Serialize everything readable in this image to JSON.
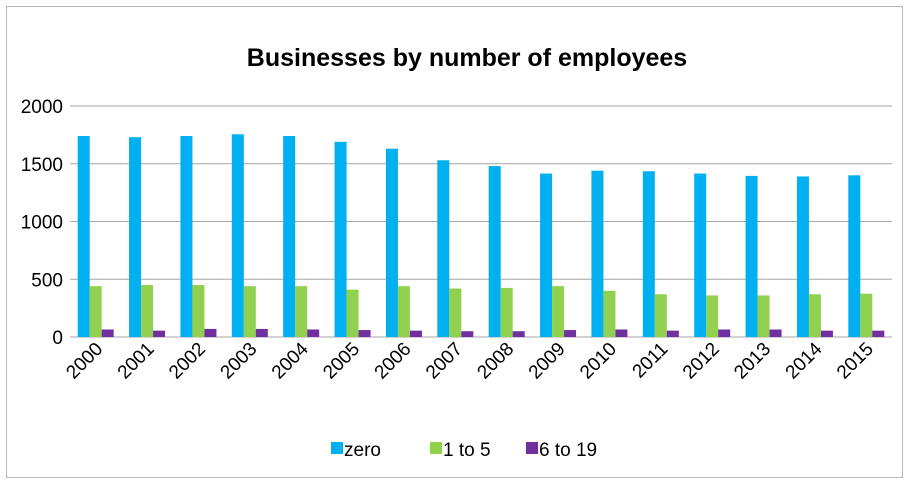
{
  "chart_data": {
    "type": "bar",
    "title": "Businesses by number of employees",
    "xlabel": "",
    "ylabel": "",
    "categories": [
      "2000",
      "2001",
      "2002",
      "2003",
      "2004",
      "2005",
      "2006",
      "2007",
      "2008",
      "2009",
      "2010",
      "2011",
      "2012",
      "2013",
      "2014",
      "2015"
    ],
    "series": [
      {
        "name": "zero",
        "color": "#00B0F0",
        "values": [
          1740,
          1730,
          1740,
          1755,
          1740,
          1690,
          1630,
          1530,
          1480,
          1415,
          1440,
          1435,
          1415,
          1395,
          1390,
          1400
        ]
      },
      {
        "name": "1 to 5",
        "color": "#92D050",
        "values": [
          440,
          450,
          450,
          440,
          440,
          410,
          440,
          420,
          425,
          440,
          400,
          370,
          360,
          360,
          370,
          375
        ]
      },
      {
        "name": "6 to 19",
        "color": "#7030A0",
        "values": [
          65,
          55,
          70,
          70,
          65,
          60,
          55,
          50,
          50,
          60,
          65,
          55,
          65,
          65,
          55,
          55
        ]
      }
    ],
    "ylim": [
      0,
      2000
    ],
    "yticks": [
      0,
      500,
      1000,
      1500,
      2000
    ],
    "grid": true,
    "legend_position": "bottom"
  }
}
